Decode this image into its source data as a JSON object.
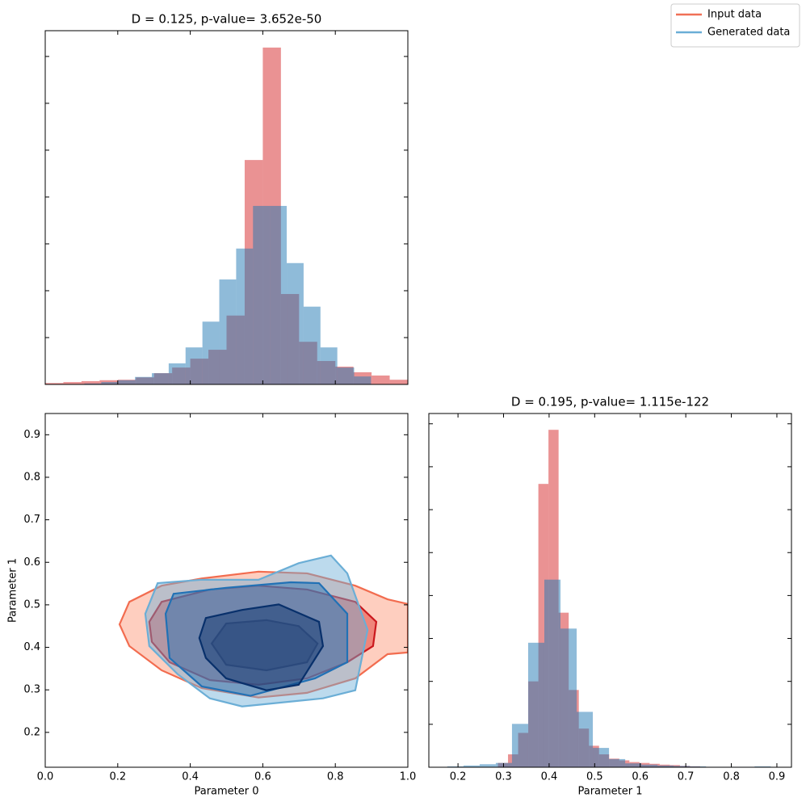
{
  "chart_data": [
    {
      "type": "histogram",
      "title": "D = 0.125, p-value= 3.652e-50",
      "xlim": [
        0,
        1
      ],
      "ylim": [
        0,
        7.55
      ],
      "xticks": [
        0,
        0.2,
        0.4,
        0.6,
        0.8,
        1
      ],
      "yticks": [
        0,
        1,
        2,
        3,
        4,
        5,
        6,
        7
      ],
      "show_tick_labels": {
        "x": false,
        "y": false
      },
      "series": [
        {
          "color": "#d9383a",
          "opacity": 0.55,
          "bins": [
            0,
            0.05,
            0.1,
            0.15,
            0.2,
            0.25,
            0.3,
            0.35,
            0.4,
            0.45,
            0.5,
            0.55,
            0.6,
            0.65,
            0.7,
            0.75,
            0.8,
            0.85,
            0.9,
            0.95,
            1.0
          ],
          "values": [
            0.03,
            0.05,
            0.07,
            0.09,
            0.1,
            0.15,
            0.24,
            0.36,
            0.55,
            0.74,
            1.47,
            4.79,
            7.19,
            1.93,
            0.91,
            0.5,
            0.38,
            0.26,
            0.19,
            0.1
          ]
        },
        {
          "color": "#1f77b4",
          "opacity": 0.5,
          "bins": [
            0.108,
            0.1545,
            0.201,
            0.2475,
            0.294,
            0.3405,
            0.387,
            0.4335,
            0.48,
            0.5265,
            0.573,
            0.6195,
            0.666,
            0.7125,
            0.759,
            0.8055,
            0.852,
            0.8985
          ],
          "values": [
            0.02,
            0.05,
            0.09,
            0.16,
            0.24,
            0.45,
            0.79,
            1.34,
            2.24,
            2.9,
            3.81,
            3.81,
            2.59,
            1.66,
            0.79,
            0.36,
            0.17
          ]
        }
      ]
    },
    {
      "type": "contour",
      "xlabel": "Parameter 0",
      "ylabel": "Parameter 1",
      "xlim": [
        0,
        1
      ],
      "ylim": [
        0.118,
        0.95
      ],
      "xticks": [
        {
          "value": 0,
          "label": "0.0"
        },
        0.2,
        0.4,
        0.6,
        0.8,
        {
          "value": 1,
          "label": "1.0"
        }
      ],
      "yticks": [
        0.2,
        0.3,
        0.4,
        0.5,
        0.6,
        0.7,
        0.8,
        0.9
      ],
      "show_tick_labels": {
        "x": true,
        "y": true
      },
      "series": [
        {
          "contours": [
            {
              "fill": "#fc9272",
              "line": "#f26c4f",
              "x": [
                0.205,
                0.232,
                0.321,
                0.432,
                0.588,
                0.722,
                0.855,
                0.944,
                1.0,
                1.0,
                0.944,
                0.855,
                0.722,
                0.588,
                0.432,
                0.321,
                0.232
              ],
              "y": [
                0.454,
                0.507,
                0.545,
                0.562,
                0.578,
                0.574,
                0.545,
                0.513,
                0.502,
                0.388,
                0.384,
                0.327,
                0.293,
                0.282,
                0.304,
                0.346,
                0.403
              ]
            },
            {
              "fill": "#de2d26",
              "line": "#cb181d",
              "x": [
                0.287,
                0.321,
                0.454,
                0.588,
                0.722,
                0.855,
                0.913,
                0.904,
                0.833,
                0.722,
                0.588,
                0.454,
                0.343,
                0.294
              ],
              "y": [
                0.46,
                0.507,
                0.536,
                0.545,
                0.536,
                0.507,
                0.46,
                0.403,
                0.365,
                0.327,
                0.312,
                0.323,
                0.365,
                0.413
              ]
            },
            {
              "fill": "#67000d",
              "line": "#67000d",
              "x": [
                0.459,
                0.499,
                0.61,
                0.699,
                0.751,
                0.722,
                0.61,
                0.499
              ],
              "y": [
                0.409,
                0.456,
                0.464,
                0.45,
                0.409,
                0.365,
                0.346,
                0.359
              ]
            }
          ]
        },
        {
          "contours": [
            {
              "fill": "#6baed6",
              "line": "#6baed6",
              "x": [
                0.276,
                0.31,
                0.432,
                0.588,
                0.699,
                0.788,
                0.833,
                0.889,
                0.855,
                0.766,
                0.543,
                0.454,
                0.365,
                0.287
              ],
              "y": [
                0.479,
                0.551,
                0.559,
                0.559,
                0.598,
                0.616,
                0.574,
                0.441,
                0.299,
                0.28,
                0.261,
                0.28,
                0.337,
                0.403
              ]
            },
            {
              "fill": "#2171b5",
              "line": "#2171b5",
              "x": [
                0.332,
                0.354,
                0.499,
                0.677,
                0.755,
                0.833,
                0.833,
                0.744,
                0.566,
                0.432,
                0.343
              ],
              "y": [
                0.479,
                0.526,
                0.54,
                0.553,
                0.551,
                0.479,
                0.365,
                0.327,
                0.286,
                0.308,
                0.375
              ]
            },
            {
              "fill": "#08306b",
              "line": "#08306b",
              "x": [
                0.425,
                0.443,
                0.543,
                0.644,
                0.755,
                0.766,
                0.699,
                0.61,
                0.499,
                0.443
              ],
              "y": [
                0.422,
                0.469,
                0.488,
                0.501,
                0.46,
                0.403,
                0.312,
                0.299,
                0.327,
                0.375
              ]
            }
          ]
        }
      ]
    },
    {
      "type": "histogram",
      "title": "D = 0.195, p-value= 1.115e-122",
      "xlabel": "Parameter 1",
      "xlim": [
        0.136,
        0.932
      ],
      "ylim": [
        0,
        8.24
      ],
      "xticks": [
        0.2,
        0.3,
        0.4,
        0.5,
        0.6,
        0.7,
        0.8,
        0.9
      ],
      "yticks": [
        0,
        1,
        2,
        3,
        4,
        5,
        6,
        7,
        8
      ],
      "show_tick_labels": {
        "x": true,
        "y": false
      },
      "series": [
        {
          "color": "#d9383a",
          "opacity": 0.55,
          "bins": [
            0.2876,
            0.3098,
            0.332,
            0.3542,
            0.3764,
            0.3986,
            0.4208,
            0.443,
            0.4652,
            0.4874,
            0.5096,
            0.5318,
            0.554,
            0.5762,
            0.5984,
            0.6206,
            0.6428,
            0.665,
            0.6872,
            0.7094,
            0.7316
          ],
          "values": [
            0.1,
            0.3,
            0.8,
            2.0,
            6.6,
            7.86,
            3.6,
            1.8,
            0.9,
            0.5,
            0.3,
            0.2,
            0.16,
            0.12,
            0.1,
            0.08,
            0.06,
            0.05,
            0.03,
            0.02
          ]
        },
        {
          "color": "#1f77b4",
          "opacity": 0.5,
          "bins": [
            0.1765,
            0.212,
            0.2475,
            0.283,
            0.3185,
            0.354,
            0.3895,
            0.425,
            0.4605,
            0.496,
            0.5315,
            0.567,
            0.6025,
            0.638,
            0.6735,
            0.709,
            0.7445,
            0.78,
            0.8155,
            0.851,
            0.8865
          ],
          "values": [
            0.02,
            0.04,
            0.07,
            0.1,
            1.01,
            2.9,
            4.37,
            3.23,
            1.29,
            0.45,
            0.19,
            0.09,
            0.06,
            0.04,
            0.03,
            0.02,
            0.01,
            0.01,
            0.01,
            0.02
          ]
        }
      ]
    }
  ],
  "legend": {
    "position": "upper right",
    "items": [
      {
        "name": "Input data",
        "color": "#f07057"
      },
      {
        "name": "Generated data",
        "color": "#6aaed6"
      }
    ]
  }
}
